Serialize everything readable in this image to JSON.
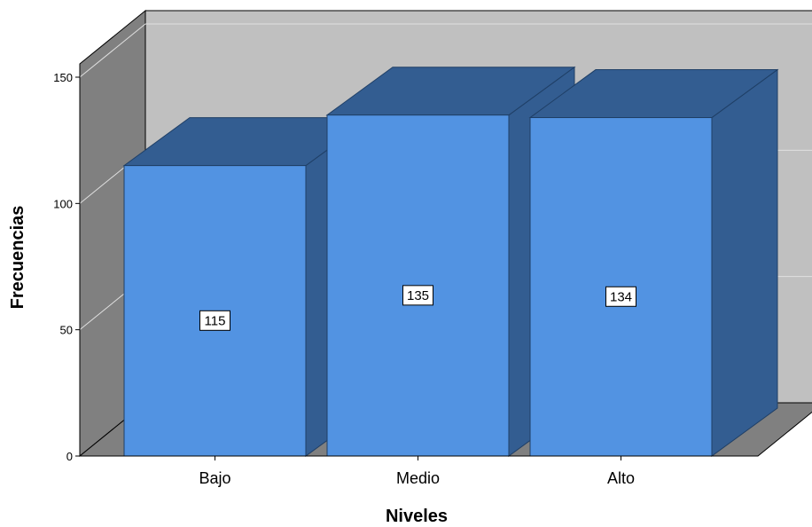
{
  "chart_data": {
    "type": "bar",
    "style": "3d",
    "categories": [
      "Bajo",
      "Medio",
      "Alto"
    ],
    "values": [
      115,
      135,
      134
    ],
    "data_labels": [
      "115",
      "135",
      "134"
    ],
    "title": "",
    "xlabel": "Niveles",
    "ylabel": "Frecuencias",
    "ylim": [
      0,
      150
    ],
    "yticks": [
      0,
      50,
      100,
      150
    ],
    "ytick_labels": [
      "0",
      "50",
      "100",
      "150"
    ],
    "grid": true,
    "legend": "none",
    "colors": {
      "bar_front": "#5293E2",
      "bar_side": "#335D91",
      "bar_top": "#335D91",
      "bar_edge": "#1F3F66",
      "back_wall": "#C0C0C0",
      "left_wall": "#808080",
      "floor": "#808080",
      "gridline": "#E0E0E0"
    }
  }
}
